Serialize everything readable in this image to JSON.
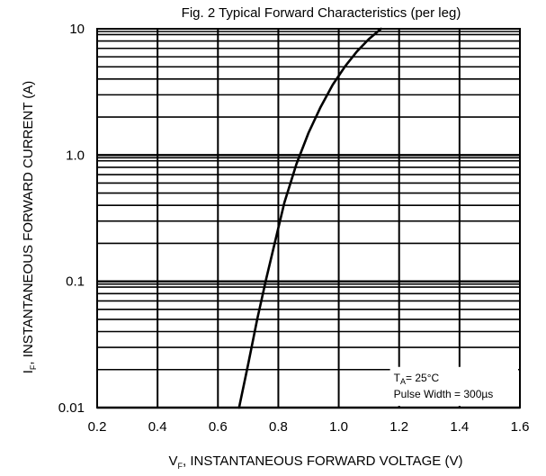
{
  "chart_data": {
    "type": "line",
    "title": "Fig. 2 Typical Forward Characteristics (per leg)",
    "xlabel": {
      "prefix": "V",
      "subscript": "F",
      "rest": ", INSTANTANEOUS FORWARD VOLTAGE (V)"
    },
    "ylabel": {
      "prefix": "I",
      "subscript": "F",
      "rest": ", INSTANTANEOUS FORWARD CURRENT (A)"
    },
    "xlim": [
      0.2,
      1.6
    ],
    "ylim": [
      0.01,
      10
    ],
    "yscale": "log",
    "grid": true,
    "x_ticks": [
      {
        "value": 0.2,
        "label": "0.2"
      },
      {
        "value": 0.4,
        "label": "0.4"
      },
      {
        "value": 0.6,
        "label": "0.6"
      },
      {
        "value": 0.8,
        "label": "0.8"
      },
      {
        "value": 1.0,
        "label": "1.0"
      },
      {
        "value": 1.2,
        "label": "1.2"
      },
      {
        "value": 1.4,
        "label": "1.4"
      },
      {
        "value": 1.6,
        "label": "1.6"
      }
    ],
    "y_ticks": [
      {
        "value": 0.01,
        "label": "0.01"
      },
      {
        "value": 0.1,
        "label": "0.1"
      },
      {
        "value": 1.0,
        "label": "1.0"
      },
      {
        "value": 10,
        "label": "10"
      }
    ],
    "series": [
      {
        "x": [
          0.67,
          0.7,
          0.73,
          0.76,
          0.79,
          0.82,
          0.86,
          0.9,
          0.94,
          0.98,
          1.02,
          1.06,
          1.1,
          1.14
        ],
        "y": [
          0.01,
          0.022,
          0.05,
          0.105,
          0.21,
          0.42,
          0.85,
          1.5,
          2.4,
          3.6,
          5.0,
          6.6,
          8.3,
          10.0
        ]
      }
    ],
    "annotations": [
      {
        "prefix": "T",
        "subscript": "A",
        "rest": "= 25°C"
      },
      {
        "text": "Pulse Width = 300µs"
      }
    ]
  }
}
